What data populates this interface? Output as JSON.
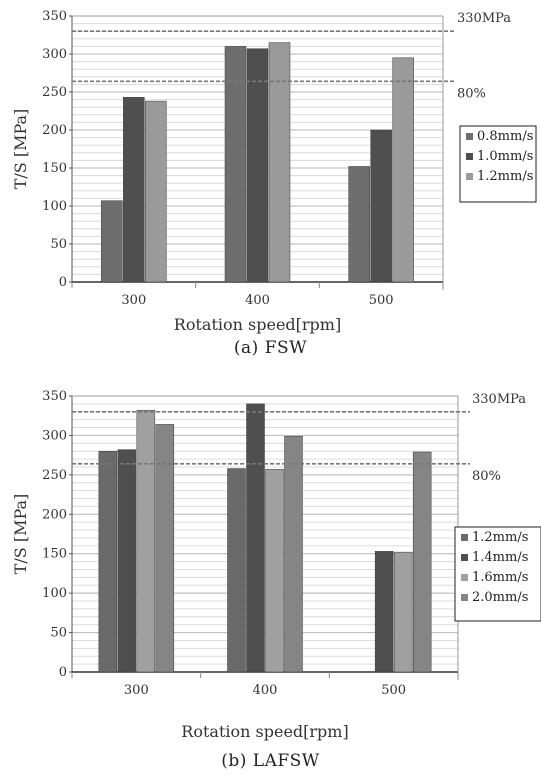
{
  "chart_data": [
    {
      "type": "bar",
      "categories": [
        "300",
        "400",
        "500"
      ],
      "series": [
        {
          "name": "0.8mm/s",
          "color": "#6e6e6e",
          "values": [
            107,
            310,
            152
          ]
        },
        {
          "name": "1.0mm/s",
          "color": "#4f4f4f",
          "values": [
            243,
            307,
            200
          ]
        },
        {
          "name": "1.2mm/s",
          "color": "#9a9a9a",
          "values": [
            238,
            315,
            295
          ]
        }
      ],
      "xlabel": "Rotation speed[rpm]",
      "ylabel": "T/S [MPa]",
      "ylim": [
        0,
        350
      ],
      "yticks": [
        0,
        50,
        100,
        150,
        200,
        250,
        300,
        350
      ],
      "ref_lines": [
        {
          "value": 330,
          "label": "330MPa"
        },
        {
          "value": 264,
          "label": "80%"
        }
      ],
      "caption": "(a) FSW",
      "grid": true,
      "legend_position": "right"
    },
    {
      "type": "bar",
      "categories": [
        "300",
        "400",
        "500"
      ],
      "series": [
        {
          "name": "1.2mm/s",
          "color": "#6a6a6a",
          "values": [
            280,
            null,
            null
          ]
        },
        {
          "name": "1.4mm/s",
          "color": "#4f4f4f",
          "values": [
            282,
            340,
            153
          ]
        },
        {
          "name": "1.6mm/s",
          "color": "#a0a0a0",
          "values": [
            332,
            257,
            152
          ]
        },
        {
          "name": "2.0mm/s",
          "color": "#858585",
          "values": [
            314,
            299,
            279
          ]
        }
      ],
      "series_alignment": "right",
      "extra_bars": [
        {
          "category": "400",
          "offset": 0,
          "value": 258,
          "color": "#6a6a6a"
        }
      ],
      "xlabel": "Rotation speed[rpm]",
      "ylabel": "T/S [MPa]",
      "ylim": [
        0,
        350
      ],
      "yticks": [
        0,
        50,
        100,
        150,
        200,
        250,
        300,
        350
      ],
      "ref_lines": [
        {
          "value": 330,
          "label": "330MPa"
        },
        {
          "value": 264,
          "label": "80%"
        }
      ],
      "caption": "(b) LAFSW",
      "grid": true,
      "legend_position": "right"
    }
  ]
}
